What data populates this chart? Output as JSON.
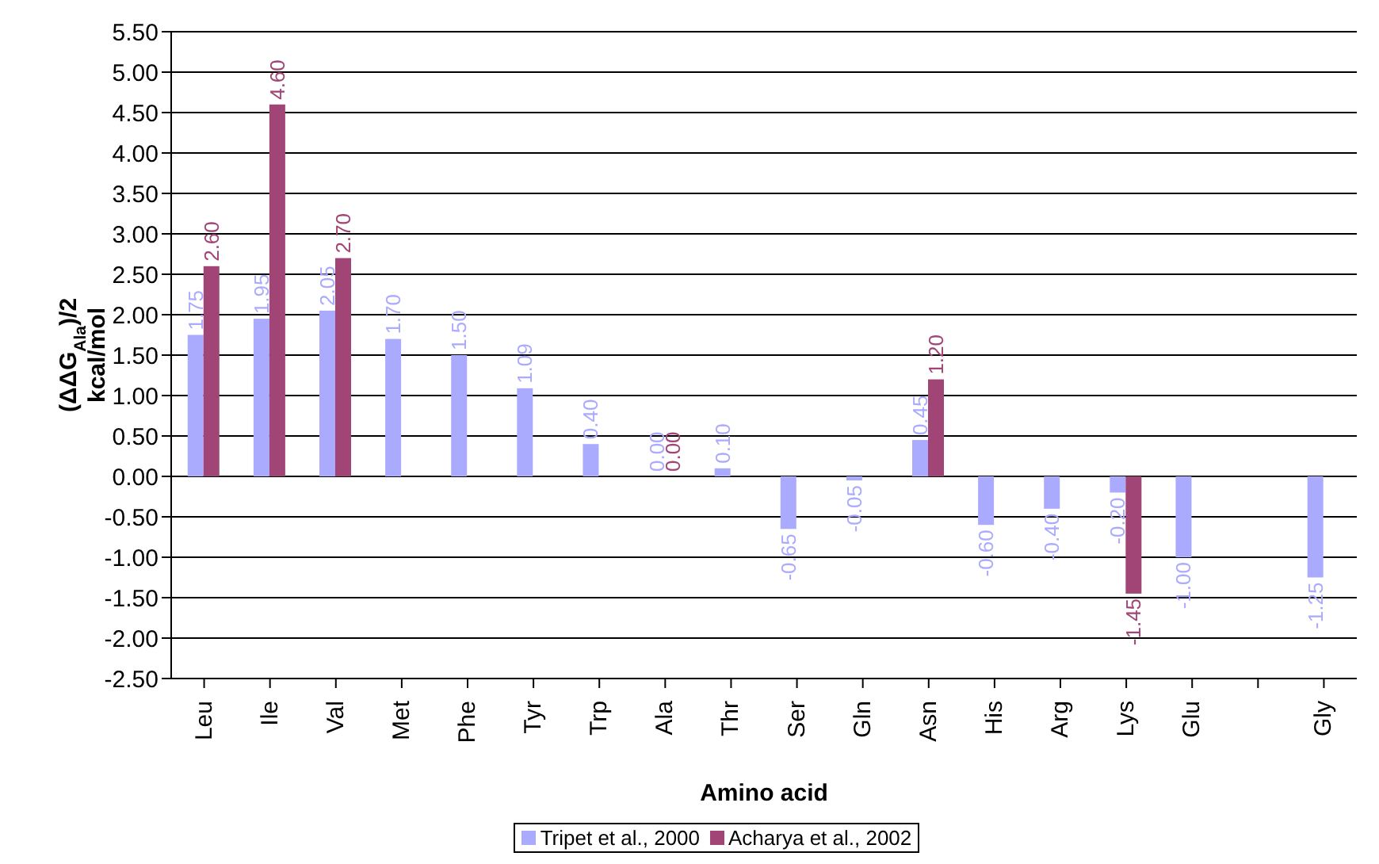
{
  "chart_data": {
    "type": "bar",
    "xlabel": "Amino acid",
    "ylabel": "(ΔΔG$_{Ala}$)/2 kcal/mol",
    "categories": [
      "Leu",
      "Ile",
      "Val",
      "Met",
      "Phe",
      "Tyr",
      "Trp",
      "Ala",
      "Thr",
      "Ser",
      "Gln",
      "Asn",
      "His",
      "Arg",
      "Lys",
      "Glu",
      null,
      "Gly"
    ],
    "series": [
      {
        "name": "Tripet et al., 2000",
        "color": "#aaaaff",
        "values": [
          1.75,
          1.95,
          2.05,
          1.7,
          1.5,
          1.09,
          0.4,
          0,
          0.1,
          -0.65,
          -0.05,
          0.45,
          -0.6,
          -0.4,
          -0.2,
          -1.0,
          null,
          -1.25
        ],
        "value_labels": [
          "1.75",
          "1.95",
          "2.05",
          "1.70",
          "1.50",
          "1.09",
          "0.40",
          "0.00",
          "0.10",
          "-0.65",
          "-0.05",
          "0.45",
          "-0.60",
          "-0.40",
          "-0.20",
          "-1.00",
          null,
          "-1.25"
        ]
      },
      {
        "name": "Acharya et al., 2002",
        "color": "#a04576",
        "values": [
          2.6,
          4.6,
          2.7,
          null,
          null,
          null,
          null,
          0,
          null,
          null,
          null,
          1.2,
          null,
          null,
          -1.45,
          null,
          null,
          null
        ],
        "value_labels": [
          "2.60",
          "4.60",
          "2.70",
          null,
          null,
          null,
          null,
          "0.00",
          null,
          null,
          null,
          "1.20",
          null,
          null,
          "-1.45",
          null,
          null,
          null
        ]
      }
    ],
    "ylim": [
      -2.5,
      5.5
    ],
    "yticks": [
      {
        "value": -2.5,
        "label": "-2.50"
      },
      {
        "value": -2,
        "label": "-2.00"
      },
      {
        "value": -1.5,
        "label": "-1.50"
      },
      {
        "value": -1,
        "label": "-1.00"
      },
      {
        "value": -0.5,
        "label": "-0.50"
      },
      {
        "value": 0,
        "label": "0.00"
      },
      {
        "value": 0.5,
        "label": "0.50"
      },
      {
        "value": 1,
        "label": "1.00"
      },
      {
        "value": 1.5,
        "label": "1.50"
      },
      {
        "value": 2,
        "label": "2.00"
      },
      {
        "value": 2.5,
        "label": "2.50"
      },
      {
        "value": 3,
        "label": "3.00"
      },
      {
        "value": 3.5,
        "label": "3.50"
      },
      {
        "value": 4,
        "label": "4.00"
      },
      {
        "value": 4.5,
        "label": "4.50"
      },
      {
        "value": 5,
        "label": "5.00"
      },
      {
        "value": 5.5,
        "label": "5.50"
      }
    ],
    "grid": "y",
    "legend": "bottom"
  }
}
